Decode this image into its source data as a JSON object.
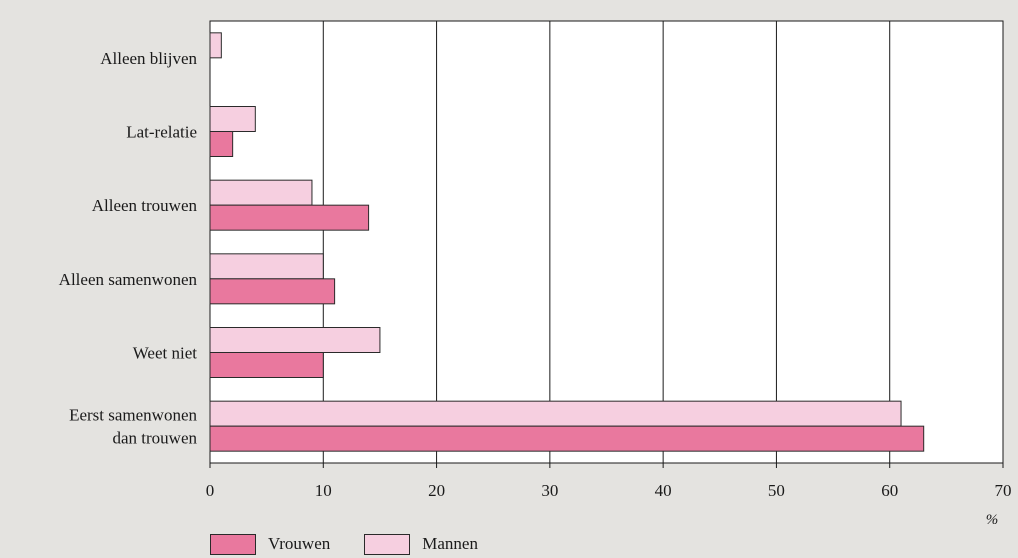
{
  "chart_data": {
    "type": "bar",
    "orientation": "horizontal",
    "categories": [
      [
        "Alleen blijven"
      ],
      [
        "Lat-relatie"
      ],
      [
        "Alleen trouwen"
      ],
      [
        "Alleen samenwonen"
      ],
      [
        "Weet niet"
      ],
      [
        "Eerst samenwonen",
        "dan trouwen"
      ]
    ],
    "series": [
      {
        "name": "Mannen",
        "color": "#f6cfe0",
        "values": [
          1,
          4,
          9,
          10,
          15,
          61
        ]
      },
      {
        "name": "Vrouwen",
        "color": "#e9789e",
        "values": [
          0,
          2,
          14,
          11,
          10,
          63
        ]
      }
    ],
    "xlim": [
      0,
      70
    ],
    "xticks": [
      0,
      10,
      20,
      30,
      40,
      50,
      60,
      70
    ],
    "unit": "%",
    "grid": "vertical",
    "legend_position": "bottom-left"
  },
  "legend": {
    "items": [
      {
        "label": "Vrouwen",
        "color": "#e9789e"
      },
      {
        "label": "Mannen",
        "color": "#f6cfe0"
      }
    ]
  }
}
